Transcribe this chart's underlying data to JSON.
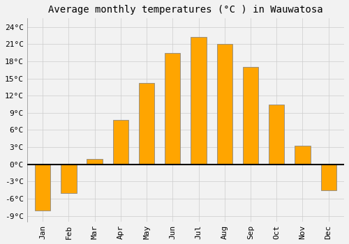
{
  "title": "Average monthly temperatures (°C ) in Wauwatosa",
  "months": [
    "Jan",
    "Feb",
    "Mar",
    "Apr",
    "May",
    "Jun",
    "Jul",
    "Aug",
    "Sep",
    "Oct",
    "Nov",
    "Dec"
  ],
  "values": [
    -8.0,
    -5.0,
    1.0,
    7.8,
    14.2,
    19.5,
    22.2,
    21.0,
    17.0,
    10.5,
    3.2,
    -4.5
  ],
  "bar_color": "#FFA500",
  "bar_edge_color": "#888888",
  "background_color": "#F2F2F2",
  "grid_color": "#CCCCCC",
  "yticks": [
    -9,
    -6,
    -3,
    0,
    3,
    6,
    9,
    12,
    15,
    18,
    21,
    24
  ],
  "ylim": [
    -10.0,
    25.5
  ],
  "zero_line_color": "#000000",
  "title_fontsize": 10,
  "tick_fontsize": 8
}
